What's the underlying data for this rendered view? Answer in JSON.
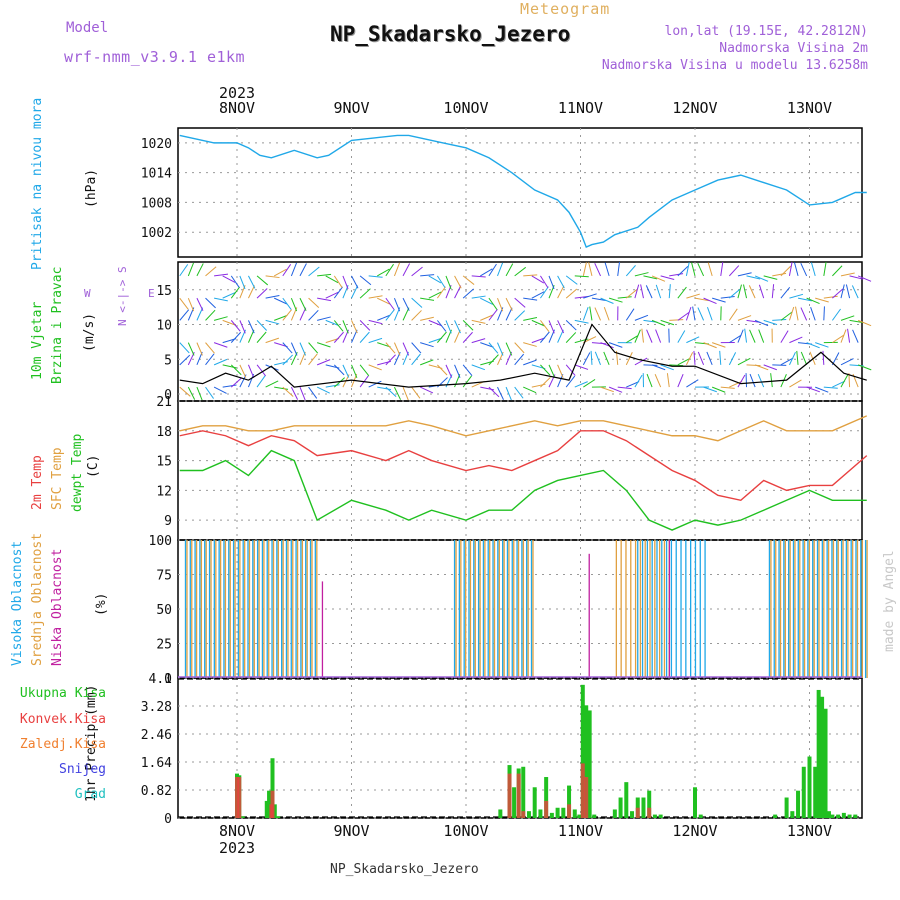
{
  "header": {
    "model_label": "Model",
    "model_value": "wrf-nmm_v3.9.1  e1km",
    "kind": "Meteogram",
    "station": "NP_Skadarsko_Jezero",
    "lonlat": "lon,lat (19.15E, 42.2812N)",
    "elevation": "Nadmorska Visina 2m",
    "model_elevation": "Nadmorska Visina u modelu 13.6258m"
  },
  "footer": {
    "station": "NP_Skadarsko_Jezero",
    "credit": "made by Angel"
  },
  "colors": {
    "pressure": "#20a8e8",
    "t2m": "#e84040",
    "sfc": "#e0a040",
    "dew": "#20c020",
    "purple": "#a060d8",
    "high": "#20a8e8",
    "mid": "#e0a040",
    "low": "#c020a0",
    "total": "#20c020",
    "conv": "#e84040",
    "frz": "#f08030",
    "snow": "#4040e0",
    "grad": "#20c0c0"
  },
  "time_axis": {
    "year": "2023",
    "labels": [
      "8NOV",
      "9NOV",
      "10NOV",
      "11NOV",
      "12NOV",
      "13NOV"
    ]
  },
  "panels": {
    "pressure": {
      "label": "Pritisak na nivou mora",
      "unit": "(hPa)",
      "ticks": [
        "1020",
        "1014",
        "1008",
        "1002"
      ]
    },
    "wind": {
      "label1": "10m Vjetar",
      "label2": "Brzina i Pravac",
      "unit": "(m/s)",
      "ticks": [
        "15",
        "10",
        "5",
        "0"
      ],
      "compass_ns": "N <-|-> S",
      "compass_w": "W",
      "compass_e": "E"
    },
    "temp": {
      "l1": "2m Temp",
      "l2": "SFC Temp",
      "l3": "dewpt Temp",
      "unit": "(C)",
      "ticks": [
        "21",
        "18",
        "15",
        "12",
        "9"
      ]
    },
    "cloud": {
      "l1": "Visoka Oblacnost",
      "l2": "Srednja Oblacnost",
      "l3": "Niska Oblacnost",
      "unit": "(%)",
      "ticks": [
        "100",
        "75",
        "50",
        "25",
        "0"
      ]
    },
    "precip": {
      "unit": "1hr Precip (mm)",
      "ticks": [
        "4.1",
        "3.28",
        "2.46",
        "1.64",
        "0.82",
        "0"
      ],
      "legend": [
        "Ukupna Kisa",
        "Konvek.Kisa",
        "Zaledj.Kisa",
        "Snijeg",
        "Grad"
      ]
    }
  },
  "chart_data": [
    {
      "type": "line",
      "title": "",
      "ylabel": "Pritisak na nivou mora (hPa)",
      "ylim": [
        997,
        1023
      ],
      "x": [
        -0.5,
        -0.4,
        -0.2,
        0,
        0.1,
        0.2,
        0.3,
        0.5,
        0.7,
        0.8,
        1.0,
        1.2,
        1.4,
        1.5,
        1.8,
        2.0,
        2.2,
        2.4,
        2.6,
        2.8,
        2.9,
        3.0,
        3.05,
        3.1,
        3.2,
        3.3,
        3.5,
        3.6,
        3.8,
        4.0,
        4.2,
        4.4,
        4.6,
        4.8,
        5.0,
        5.2,
        5.4,
        5.5
      ],
      "series": [
        {
          "name": "",
          "values": [
            1021.5,
            1021,
            1020,
            1020,
            1019,
            1017.5,
            1017,
            1018.5,
            1017,
            1017.5,
            1020.5,
            1021,
            1021.5,
            1021.5,
            1020,
            1019,
            1017,
            1014,
            1010.5,
            1008.5,
            1006,
            1002,
            999,
            999.5,
            1000,
            1001.5,
            1003,
            1005,
            1008.5,
            1010.5,
            1012.5,
            1013.5,
            1012,
            1010.5,
            1007.5,
            1008,
            1010,
            1010
          ]
        }
      ]
    },
    {
      "type": "line",
      "title": "",
      "ylabel": "(m/s)",
      "ylim": [
        -1,
        19
      ],
      "x": [
        -0.5,
        -0.3,
        -0.1,
        0.1,
        0.3,
        0.5,
        1.0,
        1.5,
        2.0,
        2.3,
        2.6,
        2.9,
        3.1,
        3.3,
        3.5,
        3.8,
        4.0,
        4.4,
        4.8,
        5.1,
        5.3,
        5.5
      ],
      "series": [
        {
          "name": "",
          "values": [
            2,
            1.5,
            3,
            2,
            4,
            1,
            2,
            1,
            1.5,
            2,
            3,
            2,
            10,
            6,
            5,
            4,
            4,
            1.5,
            2,
            6,
            3,
            2
          ]
        }
      ]
    },
    {
      "type": "line",
      "title": "",
      "ylabel": "(C)",
      "ylim": [
        7,
        21
      ],
      "x": [
        -0.5,
        -0.3,
        -0.1,
        0.1,
        0.3,
        0.5,
        0.7,
        1.0,
        1.3,
        1.5,
        1.7,
        2.0,
        2.2,
        2.4,
        2.6,
        2.8,
        3.0,
        3.2,
        3.4,
        3.6,
        3.8,
        4.0,
        4.2,
        4.4,
        4.6,
        4.8,
        5.0,
        5.2,
        5.5
      ],
      "series": [
        {
          "name": "",
          "values": [
            18,
            18.5,
            18.5,
            18,
            18,
            18.5,
            18.5,
            18.5,
            18.5,
            19,
            18.5,
            17.5,
            18,
            18.5,
            19,
            18.5,
            19,
            19,
            18.5,
            18,
            17.5,
            17.5,
            17,
            18,
            19,
            18,
            18,
            18,
            19.5
          ]
        },
        {
          "name": "",
          "values": [
            17.5,
            18,
            17.5,
            16.5,
            17.5,
            17,
            15.5,
            16,
            15,
            16,
            15,
            14,
            14.5,
            14,
            15,
            16,
            18,
            18,
            17,
            15.5,
            14,
            13,
            11.5,
            11,
            13,
            12,
            12.5,
            12.5,
            15.5
          ]
        },
        {
          "name": "",
          "values": [
            14,
            14,
            15,
            13.5,
            16,
            15,
            9,
            11,
            10,
            9,
            10,
            9,
            10,
            10,
            12,
            13,
            13.5,
            14,
            12,
            9,
            8,
            9,
            8.5,
            9,
            10,
            11,
            12,
            11,
            11
          ]
        }
      ]
    },
    {
      "type": "bar",
      "title": "",
      "ylabel": "(%)",
      "ylim": [
        0,
        100
      ],
      "series": [
        {
          "name": "",
          "ranges": [
            [
              -0.45,
              0.7
            ],
            [
              1.9,
              2.6
            ],
            [
              3.5,
              4.1
            ],
            [
              4.65,
              5.5
            ]
          ],
          "values": [
            100,
            100,
            100,
            100
          ]
        },
        {
          "name": "",
          "ranges": [
            [
              -0.45,
              0.7
            ],
            [
              1.9,
              2.6
            ],
            [
              3.3,
              3.8
            ],
            [
              4.65,
              5.5
            ]
          ],
          "values": [
            100,
            100,
            100,
            100
          ]
        },
        {
          "name": "",
          "ranges": [
            [
              0.72,
              0.72
            ],
            [
              3.05,
              3.05
            ],
            [
              3.75,
              3.75
            ]
          ],
          "values": [
            70,
            90,
            100
          ]
        }
      ]
    },
    {
      "type": "bar",
      "title": "",
      "ylabel": "1hr Precip (mm)",
      "ylim": [
        0,
        4.1
      ],
      "series": [
        {
          "name": "",
          "x": [
            0,
            0.02,
            0.05,
            0.26,
            0.28,
            0.31,
            0.33,
            0.36,
            2.3,
            2.38,
            2.42,
            2.46,
            2.5,
            2.55,
            2.6,
            2.65,
            2.7,
            2.75,
            2.8,
            2.85,
            2.9,
            2.95,
            2.99,
            3.02,
            3.05,
            3.08,
            3.12,
            3.3,
            3.35,
            3.4,
            3.45,
            3.5,
            3.55,
            3.6,
            3.65,
            3.7,
            4.0,
            4.05,
            4.7,
            4.8,
            4.85,
            4.9,
            4.95,
            5.0,
            5.05,
            5.08,
            5.11,
            5.14,
            5.17,
            5.2,
            5.25,
            5.3,
            5.35,
            5.4
          ],
          "values": [
            1.3,
            1.25,
            0.05,
            0.5,
            0.8,
            1.75,
            0.4,
            0.05,
            0.25,
            1.55,
            0.9,
            1.45,
            1.5,
            0.2,
            0.9,
            0.25,
            1.2,
            0.15,
            0.3,
            0.3,
            0.95,
            0.25,
            0.1,
            3.9,
            3.3,
            3.15,
            0.1,
            0.25,
            0.6,
            1.05,
            0.2,
            0.6,
            0.6,
            0.8,
            0.1,
            0.1,
            0.9,
            0.1,
            0.1,
            0.6,
            0.2,
            0.8,
            1.5,
            1.8,
            1.5,
            3.75,
            3.55,
            3.2,
            0.2,
            0.1,
            0.1,
            0.15,
            0.1,
            0.1
          ]
        },
        {
          "name": "",
          "x": [
            0,
            0.02,
            0.3,
            0.31,
            2.38,
            2.46,
            2.5,
            2.7,
            2.9,
            3.02,
            3.05,
            3.5,
            3.6
          ],
          "values": [
            1.2,
            1.2,
            0.4,
            0.8,
            1.3,
            1.3,
            0.2,
            0.5,
            0.4,
            1.6,
            1.2,
            0.3,
            0.3
          ]
        }
      ]
    }
  ]
}
